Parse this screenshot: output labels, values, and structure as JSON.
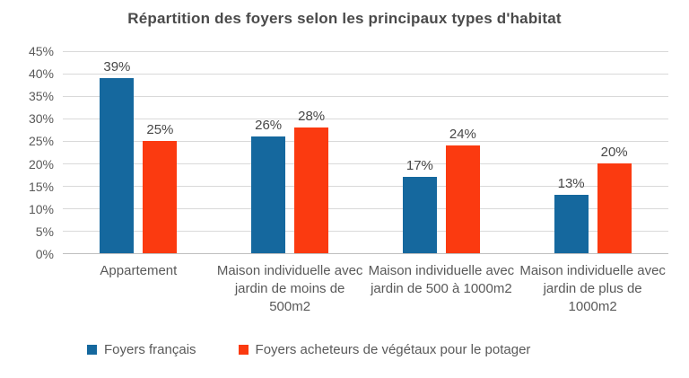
{
  "chart_data": {
    "type": "bar",
    "title": "Répartition des foyers selon les principaux types d'habitat",
    "categories": [
      "Appartement",
      "Maison individuelle avec jardin de moins de 500m2",
      "Maison individuelle avec jardin de 500 à 1000m2",
      "Maison individuelle avec jardin de plus de 1000m2"
    ],
    "series": [
      {
        "name": "Foyers français",
        "color": "#15689E",
        "values": [
          39,
          26,
          17,
          13
        ]
      },
      {
        "name": "Foyers acheteurs de végétaux pour le potager",
        "color": "#FB3A10",
        "values": [
          25,
          28,
          24,
          20
        ]
      }
    ],
    "y_ticks": [
      "45%",
      "40%",
      "35%",
      "30%",
      "25%",
      "20%",
      "15%",
      "10%",
      "5%",
      "0%"
    ],
    "ylim": [
      0,
      45
    ],
    "data_label_suffix": "%",
    "grid": true,
    "legend_position": "bottom",
    "colors": {
      "gridline": "#D9D9D9",
      "axis_line": "#BFBFBF",
      "title_text": "#4A4A4A",
      "tick_text": "#595959",
      "value_text": "#474747"
    }
  }
}
